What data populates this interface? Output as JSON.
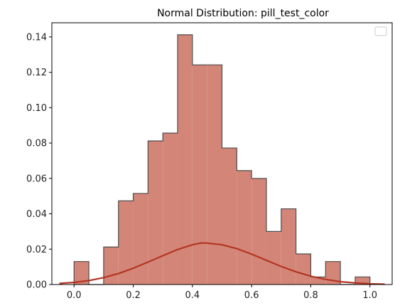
{
  "chart_data": {
    "type": "bar",
    "title": "Normal Distribution: pill_test_color",
    "xlabel": "",
    "ylabel": "",
    "xlim": [
      -0.075,
      1.075
    ],
    "ylim": [
      0,
      0.148
    ],
    "xticks": [
      "0.0",
      "0.2",
      "0.4",
      "0.6",
      "0.8",
      "1.0"
    ],
    "xtick_values": [
      0.0,
      0.2,
      0.4,
      0.6,
      0.8,
      1.0
    ],
    "yticks": [
      "0.00",
      "0.02",
      "0.04",
      "0.06",
      "0.08",
      "0.10",
      "0.12",
      "0.14"
    ],
    "ytick_values": [
      0.0,
      0.02,
      0.04,
      0.06,
      0.08,
      0.1,
      0.12,
      0.14
    ],
    "grid": false,
    "legend": {
      "placement": "top-right",
      "entries": []
    },
    "histogram": {
      "bin_edges": [
        0.0,
        0.05,
        0.1,
        0.15,
        0.2,
        0.25,
        0.3,
        0.35,
        0.4,
        0.45,
        0.5,
        0.55,
        0.6,
        0.65,
        0.7,
        0.75,
        0.8,
        0.85,
        0.9,
        0.95,
        1.0
      ],
      "values": [
        0.013,
        0.0,
        0.0212,
        0.0473,
        0.0515,
        0.0812,
        0.0856,
        0.1412,
        0.1242,
        0.1242,
        0.0772,
        0.0644,
        0.06,
        0.03,
        0.0428,
        0.0173,
        0.0043,
        0.013,
        0.0,
        0.0043
      ],
      "fill_color": "#d38677",
      "edge_color": "#4d4d4d"
    },
    "curve": {
      "type": "line",
      "x": [
        -0.05,
        0.0,
        0.05,
        0.1,
        0.15,
        0.2,
        0.25,
        0.3,
        0.35,
        0.4,
        0.43,
        0.45,
        0.5,
        0.55,
        0.6,
        0.65,
        0.7,
        0.75,
        0.8,
        0.85,
        0.9,
        0.95,
        1.0,
        1.05
      ],
      "y": [
        0.0006,
        0.0012,
        0.0022,
        0.0039,
        0.0062,
        0.0092,
        0.0127,
        0.0163,
        0.0198,
        0.0225,
        0.0235,
        0.0234,
        0.0225,
        0.0203,
        0.0172,
        0.0137,
        0.0102,
        0.0072,
        0.0047,
        0.0029,
        0.0016,
        0.0009,
        0.0004,
        0.0002
      ],
      "color": "#b33524"
    }
  }
}
